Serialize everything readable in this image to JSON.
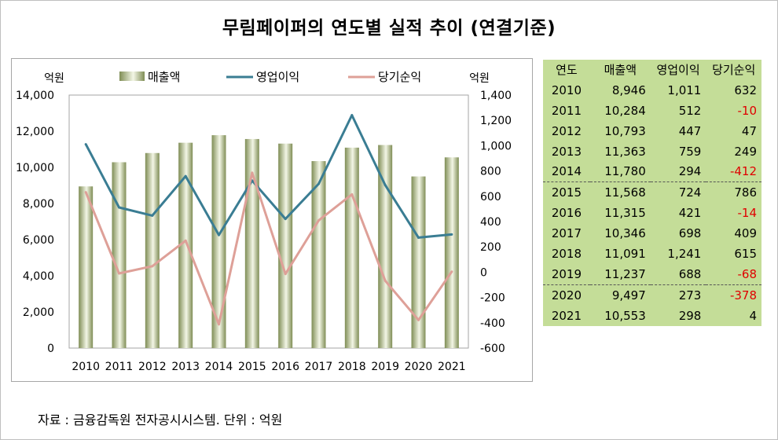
{
  "title": "무림페이퍼의 연도별 실적 추이 (연결기준)",
  "source": "자료 : 금융감독원 전자공시시스템. 단위 : 억원",
  "colors": {
    "bar_dark": "#7f8d55",
    "bar_light": "#f3f6e6",
    "operating": "#3a7d93",
    "net": "#dea098",
    "table_bg": "#c4dd98",
    "negative": "#e00000"
  },
  "chart_data": {
    "type": "bar+line",
    "categories": [
      "2010",
      "2011",
      "2012",
      "2013",
      "2014",
      "2015",
      "2016",
      "2017",
      "2018",
      "2019",
      "2020",
      "2021"
    ],
    "left_axis": {
      "unit": "억원",
      "range": [
        0,
        14000
      ],
      "ticks": [
        "0",
        "2,000",
        "4,000",
        "6,000",
        "8,000",
        "10,000",
        "12,000",
        "14,000"
      ]
    },
    "right_axis": {
      "unit": "억원",
      "range": [
        -600,
        1400
      ],
      "ticks": [
        "-600",
        "-400",
        "-200",
        "0",
        "200",
        "400",
        "600",
        "800",
        "1,000",
        "1,200",
        "1,400"
      ]
    },
    "legend_placement": "top",
    "series": [
      {
        "name": "매출액",
        "kind": "bar",
        "axis": "left",
        "values": [
          8946,
          10284,
          10793,
          11363,
          11780,
          11568,
          11315,
          10346,
          11091,
          11237,
          9497,
          10553
        ]
      },
      {
        "name": "영업이익",
        "kind": "line",
        "axis": "right",
        "values": [
          1011,
          512,
          447,
          759,
          294,
          724,
          421,
          698,
          1241,
          688,
          273,
          298
        ]
      },
      {
        "name": "당기순익",
        "kind": "line",
        "axis": "right",
        "values": [
          632,
          -10,
          47,
          249,
          -412,
          786,
          -14,
          409,
          615,
          -68,
          -378,
          4
        ]
      }
    ]
  },
  "table": {
    "headers": [
      "연도",
      "매출액",
      "영업이익",
      "당기순익"
    ],
    "rows": [
      [
        "2010",
        "8,946",
        "1,011",
        "632"
      ],
      [
        "2011",
        "10,284",
        "512",
        "-10"
      ],
      [
        "2012",
        "10,793",
        "447",
        "47"
      ],
      [
        "2013",
        "11,363",
        "759",
        "249"
      ],
      [
        "2014",
        "11,780",
        "294",
        "-412"
      ],
      [
        "2015",
        "11,568",
        "724",
        "786"
      ],
      [
        "2016",
        "11,315",
        "421",
        "-14"
      ],
      [
        "2017",
        "10,346",
        "698",
        "409"
      ],
      [
        "2018",
        "11,091",
        "1,241",
        "615"
      ],
      [
        "2019",
        "11,237",
        "688",
        "-68"
      ],
      [
        "2020",
        "9,497",
        "273",
        "-378"
      ],
      [
        "2021",
        "10,553",
        "298",
        "4"
      ]
    ],
    "separators_before_rows": [
      5,
      10
    ]
  }
}
